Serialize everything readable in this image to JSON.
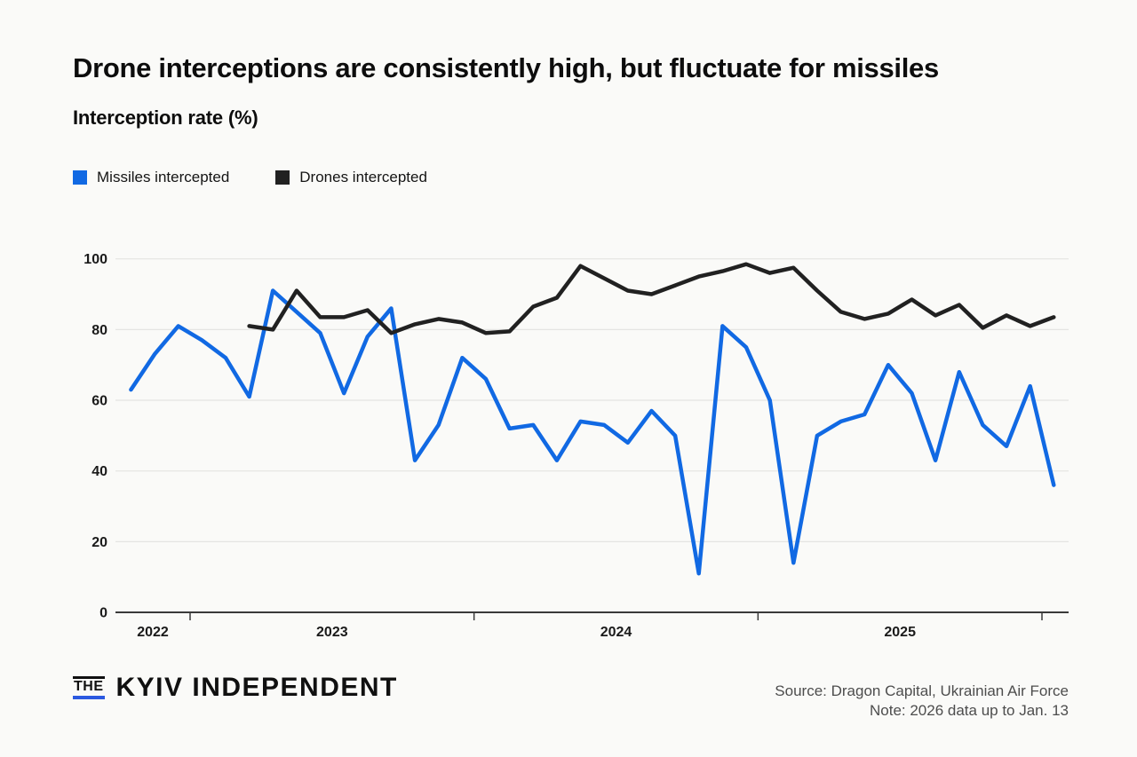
{
  "header": {
    "title": "Drone interceptions are consistently high, but fluctuate for missiles",
    "subtitle": "Interception rate (%)"
  },
  "legend": {
    "items": [
      {
        "label": "Missiles intercepted",
        "color": "#1169e3"
      },
      {
        "label": "Drones intercepted",
        "color": "#212121"
      }
    ]
  },
  "chart_data": {
    "type": "line",
    "title": "Interception rate (%)",
    "xlabel": "",
    "ylabel": "Interception rate (%)",
    "ylim": [
      0,
      100
    ],
    "y_ticks": [
      0,
      20,
      40,
      60,
      80,
      100
    ],
    "grid": true,
    "legend_position": "top-left",
    "x_unit": "month",
    "x_range_start": "2022-10",
    "x_range_end": "2026-01",
    "x_year_labels": [
      "2022",
      "2023",
      "2024",
      "2025"
    ],
    "x_year_boundaries": [
      "2023-01",
      "2024-01",
      "2025-01",
      "2026-01"
    ],
    "series": [
      {
        "name": "Missiles intercepted",
        "color": "#1169e3",
        "start_month": "2022-10",
        "values": [
          63,
          73,
          81,
          77,
          72,
          61,
          91,
          85,
          79,
          62,
          78,
          86,
          43,
          53,
          72,
          66,
          52,
          53,
          43,
          54,
          53,
          48,
          57,
          50,
          11,
          81,
          75,
          60,
          14,
          50,
          54,
          56,
          70,
          62,
          43,
          68,
          53,
          47,
          64,
          36
        ]
      },
      {
        "name": "Drones intercepted",
        "color": "#212121",
        "start_month": "2023-03",
        "values": [
          81,
          80,
          91,
          83.5,
          83.5,
          85.5,
          79,
          81.5,
          83,
          82,
          79,
          79.5,
          86.5,
          89,
          98,
          94.5,
          91,
          90,
          92.5,
          95,
          96.5,
          98.5,
          96,
          97.5,
          91,
          85,
          83,
          84.5,
          88.5,
          84,
          87,
          80.5,
          84,
          81,
          83.5
        ]
      }
    ]
  },
  "footer": {
    "logo_the": "THE",
    "logo_name": "KYIV INDEPENDENT",
    "source_line1": "Source: Dragon Capital, Ukrainian Air Force",
    "source_line2": "Note: 2026 data up to Jan. 13"
  },
  "colors": {
    "background": "#fafaf8",
    "grid": "#e4e4e2",
    "axis": "#3a3a3a",
    "tick_label": "#1a1a1a",
    "source_text": "#4d4d4d",
    "logo_underline": "#2b59e0"
  }
}
